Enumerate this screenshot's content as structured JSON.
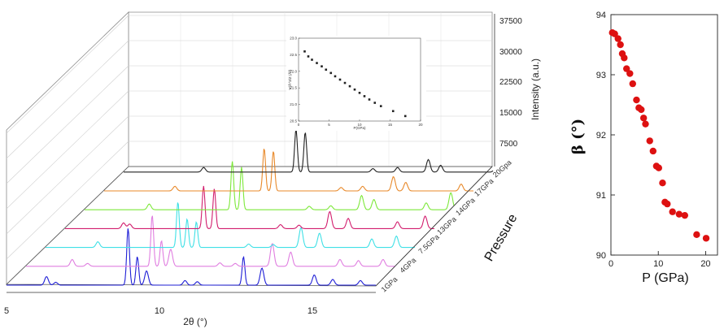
{
  "chart_data": [
    {
      "type": "line",
      "title": "",
      "xlabel": "2θ (°)",
      "xlim": [
        5,
        17
      ],
      "x_ticks": [
        "5",
        "10",
        "15"
      ],
      "ylabel": "Intensity (a.u.)",
      "ylim": [
        0,
        37500
      ],
      "y_ticks": [
        "7500",
        "15000",
        "22500",
        "30000",
        "37500"
      ],
      "zlabel": "Pressure",
      "series": [
        {
          "name": "1GPa",
          "color": "#1f1fd6",
          "peaks": [
            [
              6.3,
              0.15
            ],
            [
              6.6,
              0.05
            ],
            [
              8.95,
              1.0
            ],
            [
              9.25,
              0.5
            ],
            [
              9.55,
              0.25
            ],
            [
              10.8,
              0.08
            ],
            [
              11.2,
              0.06
            ],
            [
              12.7,
              0.5
            ],
            [
              13.3,
              0.3
            ],
            [
              15.0,
              0.18
            ],
            [
              15.6,
              0.1
            ],
            [
              16.5,
              0.08
            ]
          ]
        },
        {
          "name": "4GPa",
          "color": "#e07ee0",
          "peaks": [
            [
              6.5,
              0.12
            ],
            [
              7.0,
              0.05
            ],
            [
              9.1,
              0.9
            ],
            [
              9.4,
              0.45
            ],
            [
              9.7,
              0.3
            ],
            [
              11.3,
              0.06
            ],
            [
              11.8,
              0.05
            ],
            [
              13.0,
              0.4
            ],
            [
              13.6,
              0.25
            ],
            [
              15.2,
              0.12
            ],
            [
              15.8,
              0.1
            ],
            [
              16.6,
              0.12
            ]
          ]
        },
        {
          "name": "7.5GPa",
          "color": "#3fe0e6",
          "peaks": [
            [
              6.7,
              0.1
            ],
            [
              9.3,
              0.8
            ],
            [
              9.6,
              0.5
            ],
            [
              9.9,
              0.45
            ],
            [
              11.6,
              0.06
            ],
            [
              12.4,
              0.05
            ],
            [
              13.3,
              0.35
            ],
            [
              13.9,
              0.25
            ],
            [
              15.6,
              0.15
            ],
            [
              16.4,
              0.2
            ]
          ]
        },
        {
          "name": "13GPa",
          "color": "#d21e6e",
          "peaks": [
            [
              6.9,
              0.1
            ],
            [
              7.1,
              0.08
            ],
            [
              9.5,
              0.75
            ],
            [
              9.85,
              0.7
            ],
            [
              12.0,
              0.07
            ],
            [
              12.6,
              0.06
            ],
            [
              13.6,
              0.3
            ],
            [
              14.2,
              0.18
            ],
            [
              15.8,
              0.12
            ],
            [
              16.7,
              0.22
            ]
          ]
        },
        {
          "name": "14GPa",
          "color": "#7de83a",
          "peaks": [
            [
              7.1,
              0.1
            ],
            [
              9.8,
              0.85
            ],
            [
              10.1,
              0.75
            ],
            [
              12.3,
              0.06
            ],
            [
              13.0,
              0.07
            ],
            [
              14.0,
              0.25
            ],
            [
              14.4,
              0.18
            ],
            [
              16.1,
              0.12
            ],
            [
              16.9,
              0.3
            ]
          ]
        },
        {
          "name": "17GPa",
          "color": "#e8892a",
          "peaks": [
            [
              7.3,
              0.08
            ],
            [
              10.2,
              0.75
            ],
            [
              10.5,
              0.7
            ],
            [
              12.7,
              0.06
            ],
            [
              13.4,
              0.08
            ],
            [
              14.4,
              0.25
            ],
            [
              14.8,
              0.15
            ],
            [
              16.6,
              0.12
            ],
            [
              17.5,
              0.3
            ]
          ]
        },
        {
          "name": "20Gpa",
          "color": "#222222",
          "peaks": [
            [
              7.6,
              0.08
            ],
            [
              10.6,
              0.75
            ],
            [
              10.9,
              0.7
            ],
            [
              13.1,
              0.06
            ],
            [
              13.9,
              0.08
            ],
            [
              14.9,
              0.22
            ],
            [
              15.3,
              0.12
            ],
            [
              17.1,
              0.1
            ],
            [
              17.9,
              0.2
            ]
          ]
        }
      ]
    },
    {
      "type": "scatter",
      "title": "",
      "xlabel": "P(GPa)",
      "ylabel": "V(Å^3/Z (Å³)",
      "xlim": [
        0,
        20
      ],
      "ylim": [
        20.5,
        23.0
      ],
      "x_ticks": [
        "0",
        "5",
        "10",
        "15",
        "20"
      ],
      "y_ticks": [
        "20.5",
        "21.0",
        "21.5",
        "22.0",
        "22.5",
        "23.0"
      ],
      "points": [
        [
          1,
          22.6
        ],
        [
          1.6,
          22.45
        ],
        [
          2.2,
          22.35
        ],
        [
          3,
          22.25
        ],
        [
          3.8,
          22.15
        ],
        [
          4.5,
          22.05
        ],
        [
          5.3,
          21.95
        ],
        [
          6,
          21.85
        ],
        [
          6.8,
          21.75
        ],
        [
          7.6,
          21.65
        ],
        [
          8.4,
          21.55
        ],
        [
          9.2,
          21.45
        ],
        [
          10,
          21.35
        ],
        [
          10.8,
          21.25
        ],
        [
          11.6,
          21.15
        ],
        [
          12.5,
          21.05
        ],
        [
          13.5,
          20.95
        ],
        [
          15.5,
          20.8
        ],
        [
          17.5,
          20.65
        ]
      ],
      "color": "#222222"
    },
    {
      "type": "scatter",
      "title": "",
      "xlabel": "P (GPa)",
      "ylabel": "β (°)",
      "xlim": [
        0,
        22.5
      ],
      "ylim": [
        90,
        94
      ],
      "x_ticks": [
        "0",
        "10",
        "20"
      ],
      "y_ticks": [
        "90",
        "91",
        "92",
        "93",
        "94"
      ],
      "color": "#dd1111",
      "points": [
        [
          0.3,
          93.7
        ],
        [
          0.8,
          93.68
        ],
        [
          1.5,
          93.6
        ],
        [
          2.0,
          93.5
        ],
        [
          2.4,
          93.35
        ],
        [
          2.8,
          93.28
        ],
        [
          3.3,
          93.1
        ],
        [
          4.0,
          93.02
        ],
        [
          4.6,
          92.85
        ],
        [
          5.4,
          92.58
        ],
        [
          5.9,
          92.45
        ],
        [
          6.4,
          92.42
        ],
        [
          6.9,
          92.28
        ],
        [
          7.3,
          92.18
        ],
        [
          8.2,
          91.9
        ],
        [
          8.9,
          91.73
        ],
        [
          9.6,
          91.48
        ],
        [
          10.1,
          91.45
        ],
        [
          10.9,
          91.2
        ],
        [
          11.4,
          90.88
        ],
        [
          11.9,
          90.85
        ],
        [
          13.0,
          90.72
        ],
        [
          14.4,
          90.68
        ],
        [
          15.6,
          90.66
        ],
        [
          18.1,
          90.34
        ],
        [
          20.1,
          90.28
        ]
      ]
    }
  ]
}
